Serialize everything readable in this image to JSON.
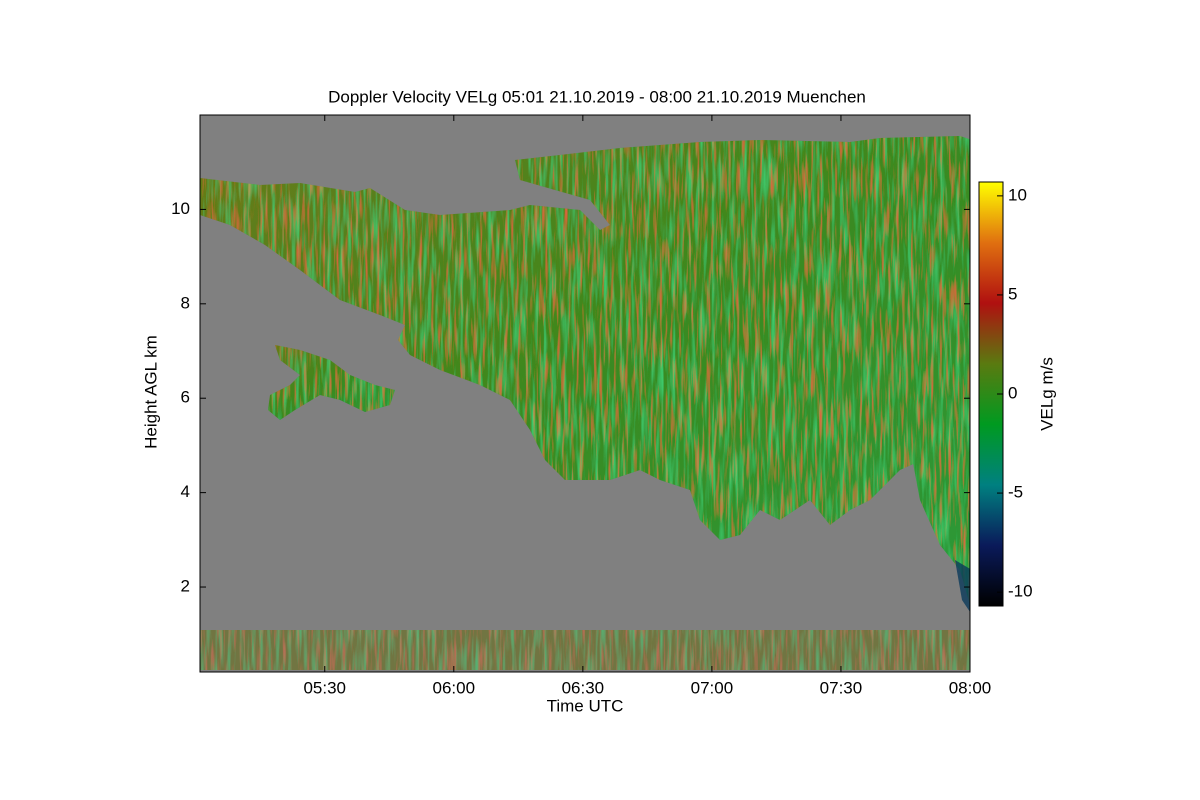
{
  "chart_data": {
    "type": "heatmap",
    "title": "Doppler Velocity VELg   05:01 21.10.2019 - 08:00 21.10.2019 Muenchen",
    "x_label": "Time UTC",
    "y_label": "Height AGL km",
    "colorbar_label": "VELg m/s",
    "xlim": [
      "05:01",
      "08:00"
    ],
    "xticks": [
      "05:30",
      "06:00",
      "06:30",
      "07:00",
      "07:30",
      "08:00"
    ],
    "ylim": [
      0.2,
      12
    ],
    "yticks": [
      2,
      4,
      6,
      8,
      10
    ],
    "clim": [
      -10.7,
      10.7
    ],
    "cticks": [
      -10,
      -5,
      0,
      5,
      10
    ],
    "colormap": [
      "#000000",
      "#0a1a5a",
      "#008080",
      "#009a20",
      "#5a7a10",
      "#b01010",
      "#e07010",
      "#ffff00"
    ]
  }
}
